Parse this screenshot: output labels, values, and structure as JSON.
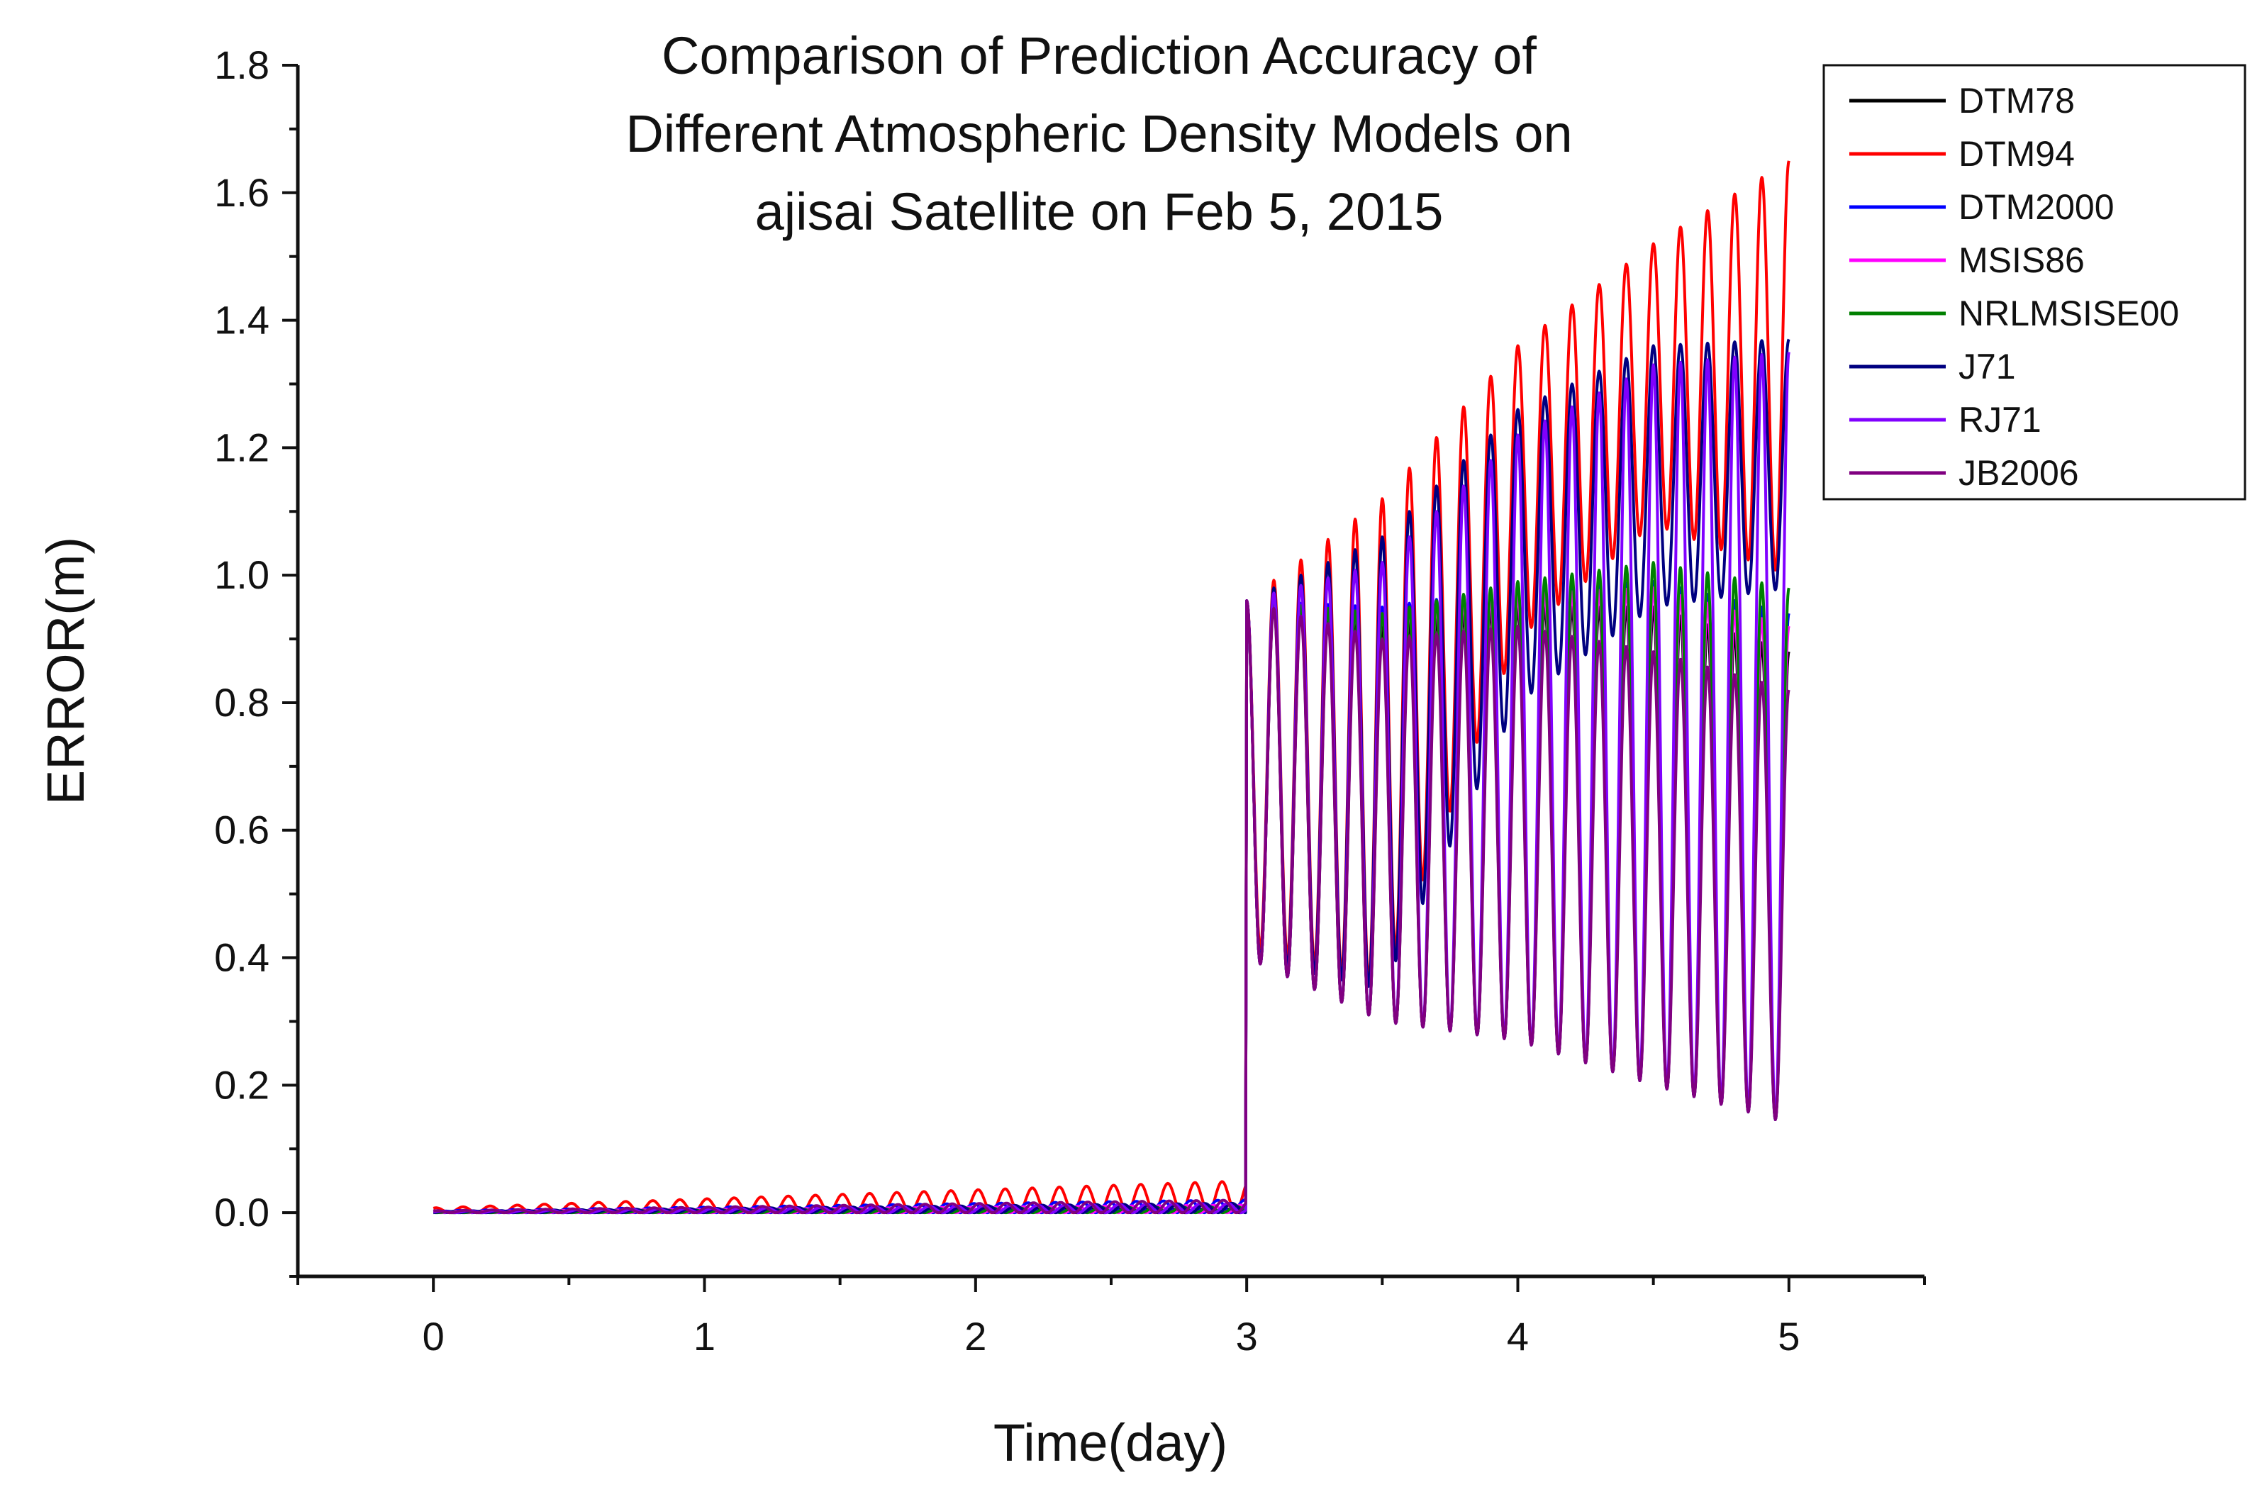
{
  "chart_data": {
    "type": "line",
    "title": [
      "Comparison of Prediction Accuracy of",
      "Different Atmospheric Density Models on",
      "ajisai Satellite on Feb 5, 2015"
    ],
    "xlabel": "Time(day)",
    "ylabel": "ERROR(m)",
    "xlim": [
      -0.5,
      5.5
    ],
    "ylim": [
      -0.1,
      1.8
    ],
    "xticks": [
      0,
      1,
      2,
      3,
      4,
      5
    ],
    "xtick_labels": [
      "0",
      "1",
      "2",
      "3",
      "4",
      "5"
    ],
    "yticks": [
      0.0,
      0.2,
      0.4,
      0.6,
      0.8,
      1.0,
      1.2,
      1.4,
      1.6,
      1.8
    ],
    "ytick_labels": [
      "0.0",
      "0.2",
      "0.4",
      "0.6",
      "0.8",
      "1.0",
      "1.2",
      "1.4",
      "1.6",
      "1.8"
    ],
    "grid": false,
    "legend_position": "top-right",
    "jump_day": 3,
    "oscillation_period_day": 0.1,
    "series": [
      {
        "name": "DTM78",
        "color": "#000000",
        "pre_jump_max": 0.006,
        "envelope_x": [
          3.0,
          3.5,
          4.0,
          4.5,
          5.0
        ],
        "upper": [
          0.96,
          0.92,
          0.95,
          0.95,
          0.88
        ],
        "lower": [
          0.4,
          0.3,
          0.27,
          0.2,
          0.14
        ]
      },
      {
        "name": "DTM94",
        "color": "#ff0000",
        "pre_jump_max": 0.05,
        "envelope_x": [
          3.0,
          3.5,
          4.0,
          4.5,
          5.0
        ],
        "upper": [
          0.96,
          1.12,
          1.36,
          1.52,
          1.65
        ],
        "lower": [
          0.42,
          0.36,
          0.9,
          1.08,
          1.0
        ]
      },
      {
        "name": "DTM2000",
        "color": "#0000ff",
        "pre_jump_max": 0.02,
        "envelope_x": [
          3.0,
          3.5,
          4.0,
          4.5,
          5.0
        ],
        "upper": [
          0.96,
          0.95,
          0.98,
          0.99,
          0.94
        ],
        "lower": [
          0.4,
          0.3,
          0.27,
          0.2,
          0.14
        ]
      },
      {
        "name": "MSIS86",
        "color": "#ff00ff",
        "pre_jump_max": 0.012,
        "envelope_x": [
          3.0,
          3.5,
          4.0,
          4.5,
          5.0
        ],
        "upper": [
          0.96,
          0.94,
          0.97,
          0.98,
          0.92
        ],
        "lower": [
          0.4,
          0.3,
          0.27,
          0.2,
          0.14
        ]
      },
      {
        "name": "NRLMSISE00",
        "color": "#008000",
        "pre_jump_max": 0.01,
        "envelope_x": [
          3.0,
          3.5,
          4.0,
          4.5,
          5.0
        ],
        "upper": [
          0.96,
          0.94,
          0.99,
          1.02,
          0.98
        ],
        "lower": [
          0.4,
          0.3,
          0.27,
          0.2,
          0.14
        ]
      },
      {
        "name": "J71",
        "color": "#000080",
        "pre_jump_max": 0.015,
        "envelope_x": [
          3.0,
          3.5,
          4.0,
          4.5,
          5.0
        ],
        "upper": [
          0.96,
          1.06,
          1.26,
          1.36,
          1.37
        ],
        "lower": [
          0.4,
          0.35,
          0.8,
          0.95,
          0.98
        ]
      },
      {
        "name": "RJ71",
        "color": "#8000ff",
        "pre_jump_max": 0.015,
        "envelope_x": [
          3.0,
          3.5,
          4.0,
          4.5,
          5.0
        ],
        "upper": [
          0.96,
          1.02,
          1.22,
          1.33,
          1.35
        ],
        "lower": [
          0.4,
          0.3,
          0.27,
          0.2,
          0.14
        ]
      },
      {
        "name": "JB2006",
        "color": "#800080",
        "pre_jump_max": 0.02,
        "envelope_x": [
          3.0,
          3.5,
          4.0,
          4.5,
          5.0
        ],
        "upper": [
          0.96,
          0.9,
          0.92,
          0.88,
          0.82
        ],
        "lower": [
          0.4,
          0.3,
          0.27,
          0.2,
          0.14
        ]
      }
    ]
  }
}
